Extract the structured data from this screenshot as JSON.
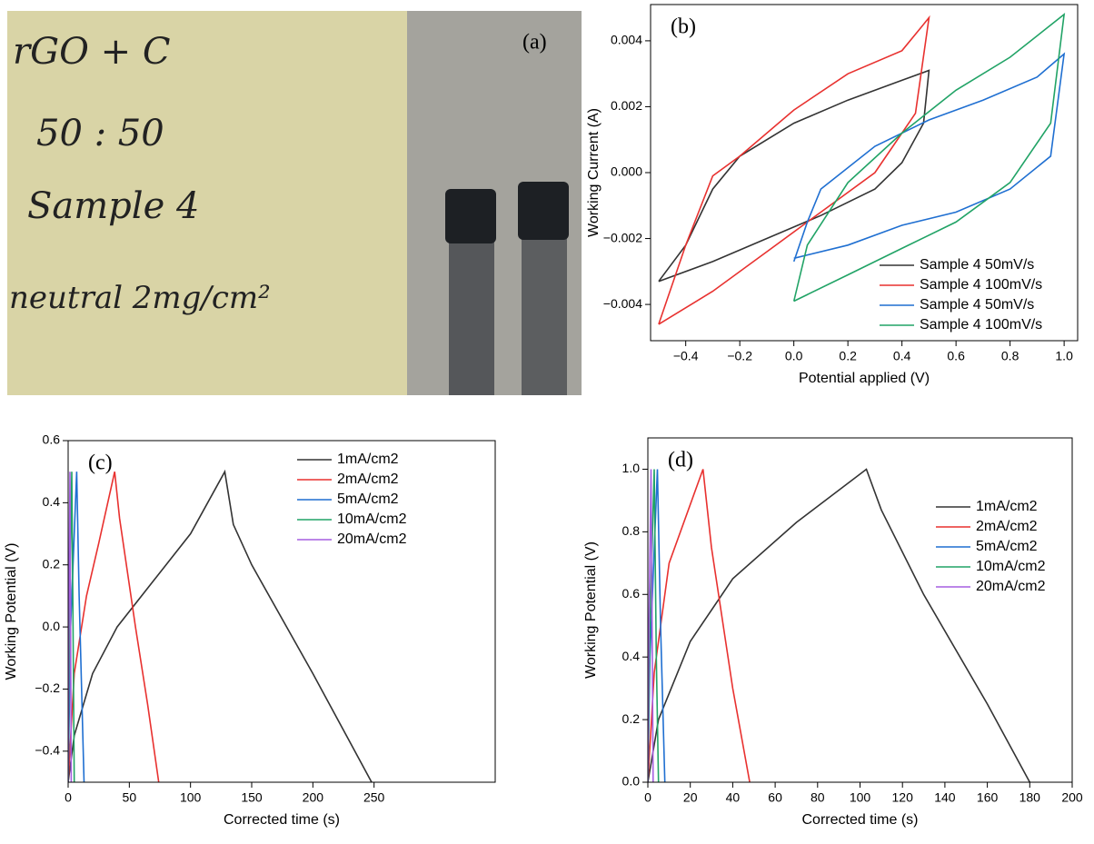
{
  "photo": {
    "label": "(a)",
    "writing": [
      "rGO + C",
      "50 : 50",
      "Sample 4",
      "neutral 2mg/cm²"
    ]
  },
  "chart_data": [
    {
      "type": "line",
      "panel_label": "(b)",
      "x_label": "Potential applied (V)",
      "y_label": "Working Current (A)",
      "xlim": [
        -0.53,
        1.05
      ],
      "ylim": [
        -0.0051,
        0.0051
      ],
      "xticks": [
        {
          "value": -0.4,
          "label": "−0.4"
        },
        {
          "value": -0.2,
          "label": "−0.2"
        },
        {
          "value": 0,
          "label": "0.0"
        },
        0.2,
        0.4,
        0.6,
        0.8,
        {
          "value": 1,
          "label": "1.0"
        }
      ],
      "yticks": [
        {
          "value": -0.004,
          "label": "−0.004"
        },
        {
          "value": -0.002,
          "label": "−0.002"
        },
        {
          "value": 0,
          "label": "0.000"
        },
        {
          "value": 0.002,
          "label": "0.002"
        },
        {
          "value": 0.004,
          "label": "0.004"
        }
      ],
      "legend": "lower right",
      "series": [
        {
          "name": "Sample 4 50mV/s",
          "color": "#333333",
          "x": [
            -0.5,
            -0.4,
            -0.3,
            -0.2,
            0,
            0.2,
            0.4,
            0.5,
            0.48,
            0.4,
            0.3,
            0.1,
            -0.1,
            -0.3,
            -0.5
          ],
          "values": [
            -0.0033,
            -0.0022,
            -0.0005,
            0.0005,
            0.0015,
            0.0022,
            0.0028,
            0.0031,
            0.0015,
            0.0003,
            -0.0005,
            -0.0013,
            -0.002,
            -0.0027,
            -0.0033
          ]
        },
        {
          "name": "Sample 4 100mV/s",
          "color": "#e8312f",
          "x": [
            -0.5,
            -0.3,
            -0.1,
            0.1,
            0.3,
            0.45,
            0.5,
            0.4,
            0.2,
            0,
            -0.2,
            -0.3,
            -0.4,
            -0.5
          ],
          "values": [
            -0.0046,
            -0.0036,
            -0.0024,
            -0.0012,
            0,
            0.0018,
            0.0047,
            0.0037,
            0.003,
            0.0019,
            0.0005,
            -0.0001,
            -0.0022,
            -0.0046
          ]
        },
        {
          "name": "Sample 4 50mV/s",
          "color": "#1f6fd1",
          "x": [
            0,
            0.05,
            0.1,
            0.3,
            0.5,
            0.7,
            0.9,
            1,
            0.95,
            0.8,
            0.6,
            0.4,
            0.2,
            0
          ],
          "values": [
            -0.0027,
            -0.0015,
            -0.0005,
            0.0008,
            0.0016,
            0.0022,
            0.0029,
            0.0036,
            0.0005,
            -0.0005,
            -0.0012,
            -0.0016,
            -0.0022,
            -0.0026
          ]
        },
        {
          "name": "Sample 4 100mV/s",
          "color": "#21a366",
          "x": [
            0,
            0.05,
            0.2,
            0.4,
            0.6,
            0.8,
            1,
            0.95,
            0.8,
            0.6,
            0.4,
            0.2,
            0
          ],
          "values": [
            -0.0039,
            -0.0022,
            -0.0003,
            0.0012,
            0.0025,
            0.0035,
            0.0048,
            0.0015,
            -0.0003,
            -0.0015,
            -0.0023,
            -0.0031,
            -0.0039
          ]
        }
      ]
    },
    {
      "type": "line",
      "panel_label": "(c)",
      "x_label": "Corrected time (s)",
      "y_label": "Working Potential (V)",
      "xlim": [
        0,
        349
      ],
      "ylim": [
        -0.5,
        0.6
      ],
      "xticks": [
        0,
        50,
        100,
        150,
        200,
        250
      ],
      "yticks": [
        {
          "value": -0.4,
          "label": "−0.4"
        },
        {
          "value": -0.2,
          "label": "−0.2"
        },
        {
          "value": 0,
          "label": "0.0"
        },
        0.2,
        0.4,
        0.6
      ],
      "legend": "upper right",
      "series": [
        {
          "name": "1mA/cm2",
          "color": "#333333",
          "x": [
            0,
            5,
            20,
            40,
            70,
            100,
            128,
            135,
            150,
            200,
            248
          ],
          "values": [
            -0.5,
            -0.35,
            -0.15,
            0,
            0.15,
            0.3,
            0.5,
            0.33,
            0.2,
            -0.15,
            -0.5
          ]
        },
        {
          "name": "2mA/cm2",
          "color": "#e8312f",
          "x": [
            0,
            5,
            15,
            25,
            38,
            42,
            55,
            65,
            74
          ],
          "values": [
            -0.5,
            -0.15,
            0.1,
            0.27,
            0.5,
            0.35,
            0,
            -0.25,
            -0.5
          ]
        },
        {
          "name": "5mA/cm2",
          "color": "#1f6fd1",
          "x": [
            0,
            2,
            7,
            9,
            13
          ],
          "values": [
            -0.5,
            0,
            0.5,
            0.1,
            -0.5
          ]
        },
        {
          "name": "10mA/cm2",
          "color": "#21a366",
          "x": [
            0,
            1,
            3,
            4,
            5
          ],
          "values": [
            -0.5,
            0,
            0.5,
            0,
            -0.5
          ]
        },
        {
          "name": "20mA/cm2",
          "color": "#a55fe0",
          "x": [
            0,
            0.5,
            1.5,
            2,
            2.5
          ],
          "values": [
            -0.5,
            0,
            0.5,
            0,
            -0.5
          ]
        }
      ]
    },
    {
      "type": "line",
      "panel_label": "(d)",
      "x_label": "Corrected time (s)",
      "y_label": "Working Potential (V)",
      "xlim": [
        0,
        200
      ],
      "ylim": [
        0,
        1.1
      ],
      "xticks": [
        0,
        20,
        40,
        60,
        80,
        100,
        120,
        140,
        160,
        180,
        200
      ],
      "yticks": [
        {
          "value": 0,
          "label": "0.0"
        },
        0.2,
        0.4,
        0.6,
        0.8,
        {
          "value": 1,
          "label": "1.0"
        }
      ],
      "legend": "right",
      "series": [
        {
          "name": "1mA/cm2",
          "color": "#333333",
          "x": [
            0,
            5,
            20,
            40,
            70,
            103,
            110,
            130,
            160,
            180
          ],
          "values": [
            0,
            0.2,
            0.45,
            0.65,
            0.83,
            1,
            0.87,
            0.6,
            0.25,
            0
          ]
        },
        {
          "name": "2mA/cm2",
          "color": "#e8312f",
          "x": [
            0,
            3,
            10,
            26,
            30,
            40,
            48
          ],
          "values": [
            0,
            0.35,
            0.7,
            1,
            0.75,
            0.3,
            0
          ]
        },
        {
          "name": "5mA/cm2",
          "color": "#1f6fd1",
          "x": [
            0,
            1,
            4.5,
            6,
            8
          ],
          "values": [
            0,
            0.4,
            1,
            0.5,
            0
          ]
        },
        {
          "name": "10mA/cm2",
          "color": "#21a366",
          "x": [
            0,
            1,
            3,
            4,
            5
          ],
          "values": [
            0,
            0.5,
            1,
            0.4,
            0
          ]
        },
        {
          "name": "20mA/cm2",
          "color": "#a55fe0",
          "x": [
            0,
            0.5,
            1.5,
            2,
            2.5
          ],
          "values": [
            0,
            0.5,
            1,
            0.5,
            0
          ]
        }
      ]
    }
  ]
}
